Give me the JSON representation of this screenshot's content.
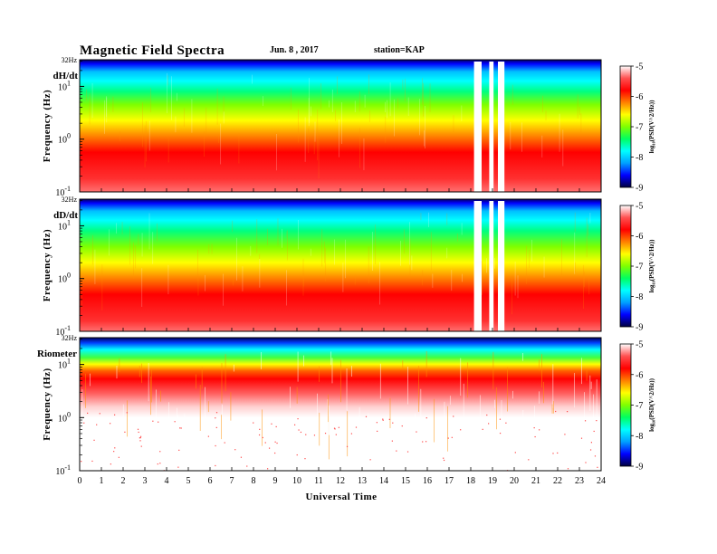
{
  "header": {
    "title": "Magnetic  Field  Spectra",
    "date": "Jun.  8  , 2017",
    "station": "station=KAP"
  },
  "chart_data": {
    "type": "heatmap",
    "xlabel": "Universal Time",
    "xlim": [
      0,
      24
    ],
    "x_ticks": [
      "0",
      "1",
      "2",
      "3",
      "4",
      "5",
      "6",
      "7",
      "8",
      "9",
      "10",
      "11",
      "12",
      "13",
      "14",
      "15",
      "16",
      "17",
      "18",
      "19",
      "20",
      "21",
      "22",
      "23",
      "24"
    ],
    "ylabel": "Frequency (Hz)",
    "yscale": "log",
    "ylim": [
      0.1,
      32
    ],
    "y_top_label": "32Hz",
    "y_ticks": [
      {
        "value": 10,
        "base": "10",
        "exp": "1"
      },
      {
        "value": 1,
        "base": "10",
        "exp": "0"
      },
      {
        "value": 0.1,
        "base": "10",
        "exp": "-1"
      }
    ],
    "colorbar": {
      "label": "log₁₀(PSD(V^2/Hz))",
      "range": [
        -9,
        -5
      ],
      "ticks": [
        "-5",
        "-6",
        "-7",
        "-8",
        "-9"
      ],
      "colors": [
        "#000040",
        "#0000ff",
        "#00a0ff",
        "#00ffff",
        "#00ff60",
        "#7fff00",
        "#ffff00",
        "#ff8000",
        "#ff0000",
        "#ff5050",
        "#ffffff"
      ]
    },
    "panels": [
      {
        "label": "dH/dt",
        "gaps": [
          [
            18.15,
            18.5
          ],
          [
            18.85,
            19.05
          ],
          [
            19.25,
            19.55
          ]
        ]
      },
      {
        "label": "dD/dt",
        "gaps": [
          [
            18.15,
            18.5
          ],
          [
            18.85,
            19.05
          ],
          [
            19.25,
            19.55
          ]
        ]
      },
      {
        "label": "Riometer",
        "gaps": []
      }
    ]
  }
}
